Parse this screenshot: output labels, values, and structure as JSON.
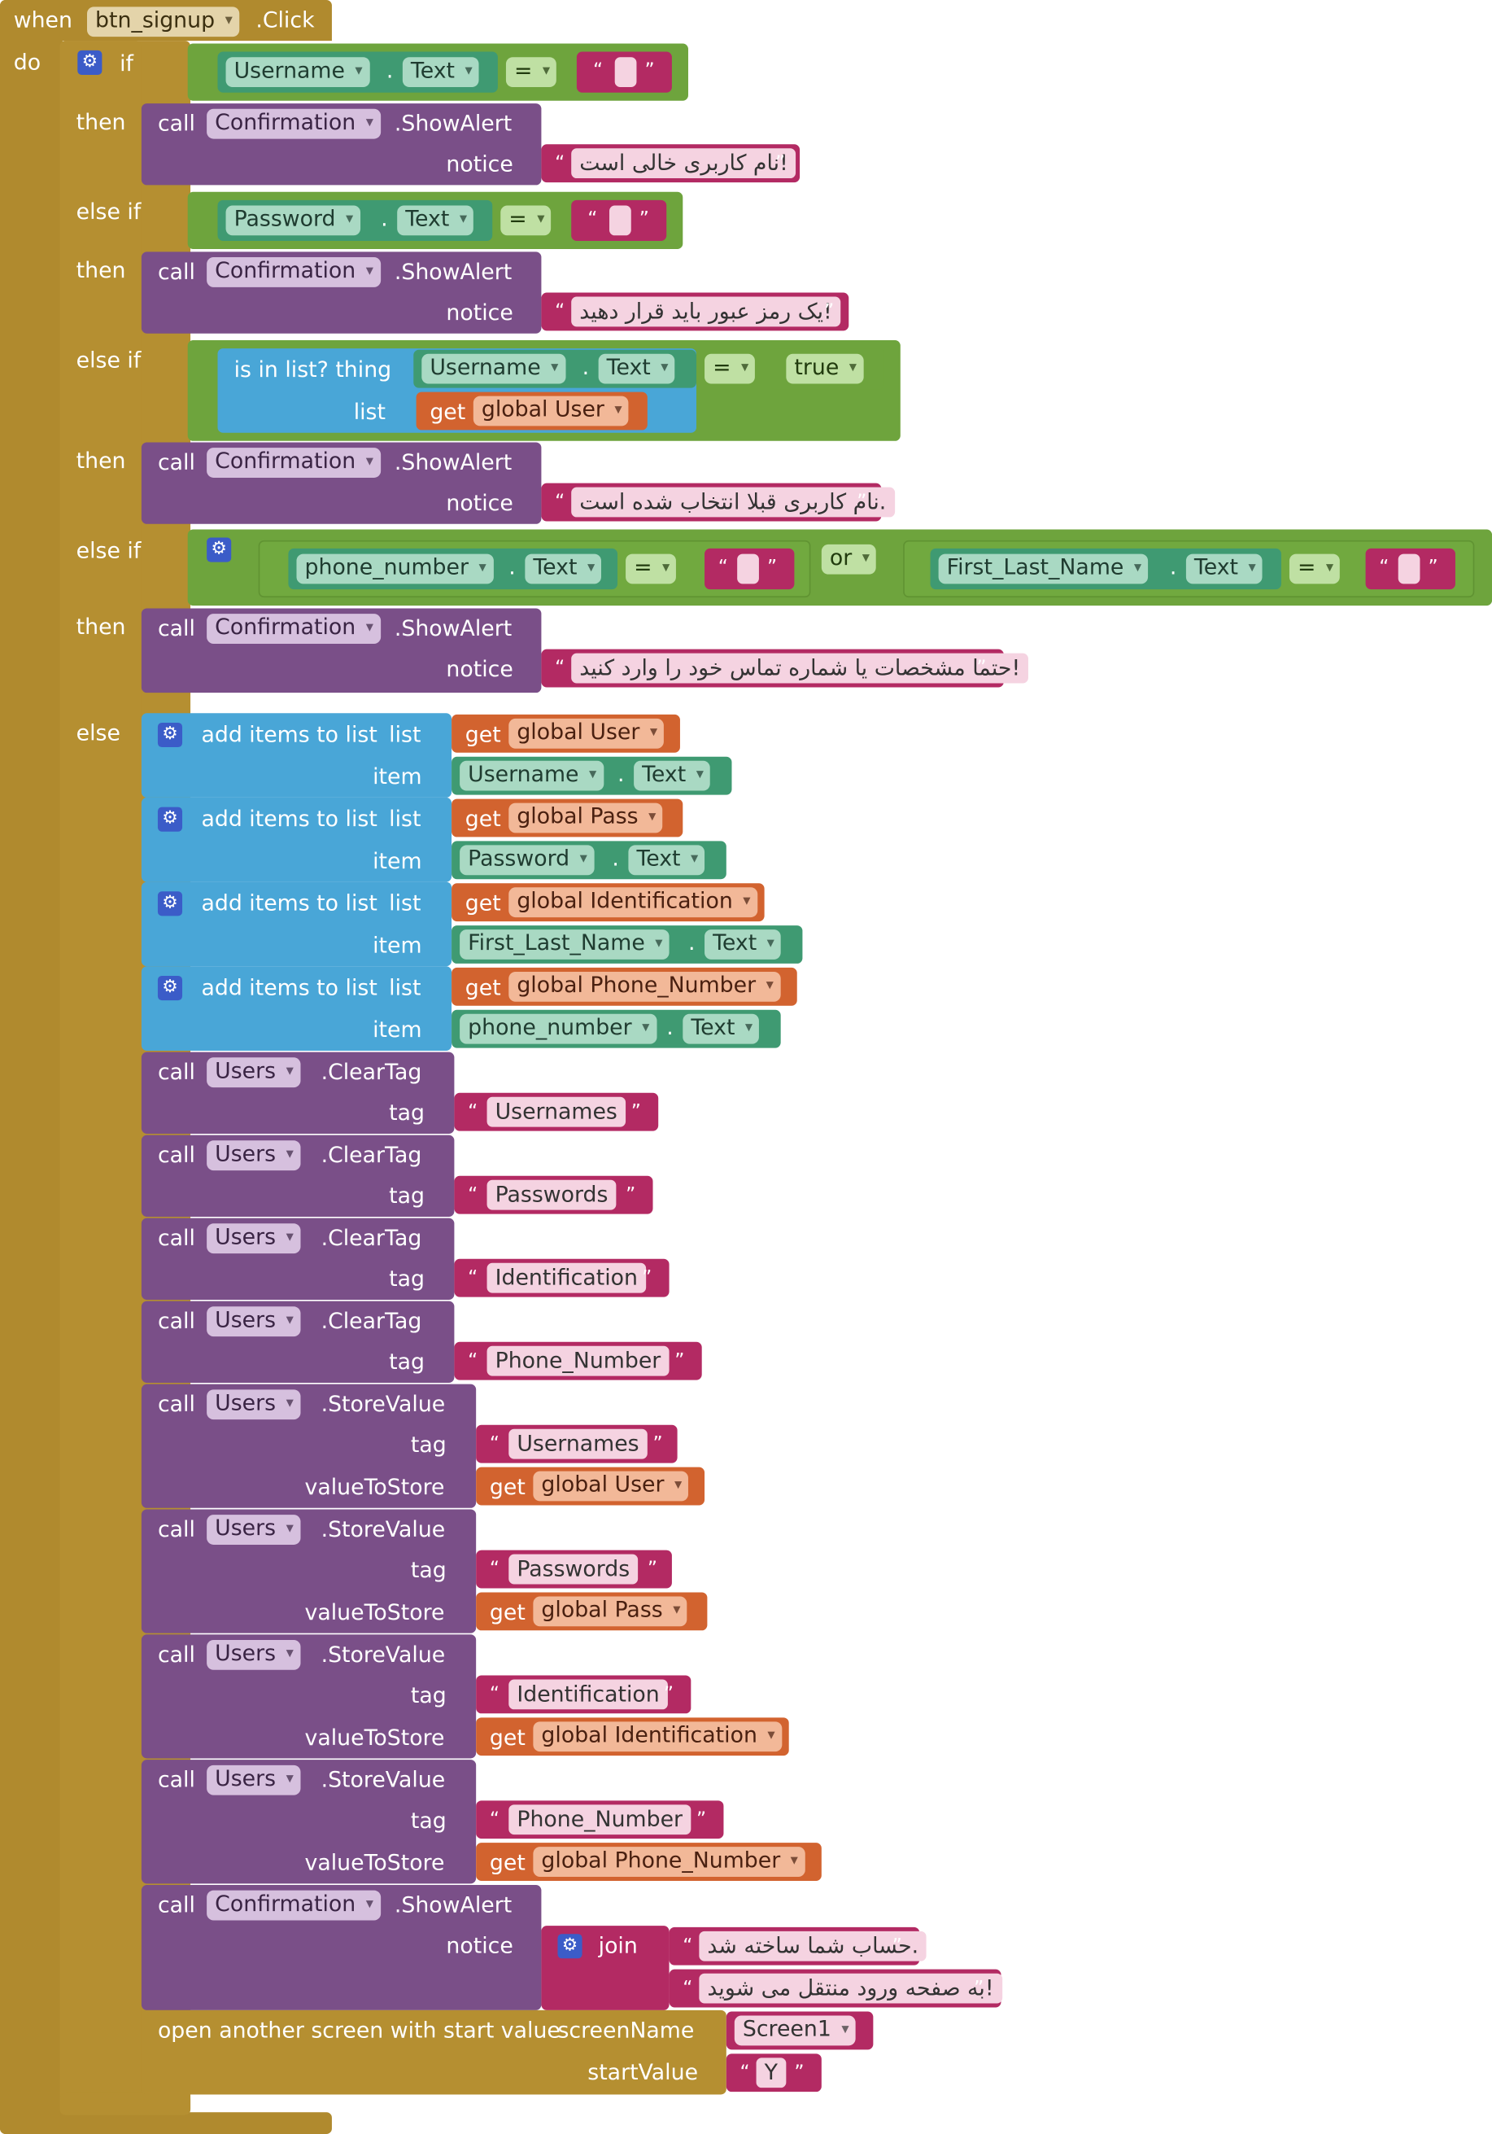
{
  "event": {
    "when": "when",
    "component": "btn_signup",
    "event_name": ".Click",
    "do": "do"
  },
  "kw": {
    "if": "if",
    "then": "then",
    "else_if": "else if",
    "else": "else",
    "call": "call",
    "notice": "notice",
    "tag": "tag",
    "value_to_store": "valueToStore",
    "get": "get",
    "list": "list",
    "item": "item",
    "add_items": "add items to list",
    "is_in_list": "is in list? thing",
    "or": "or",
    "eq": "=",
    "true": "true",
    "join": "join",
    "dot": ".",
    "quote_open": "“",
    "quote_close": "”",
    "open_screen": "open another screen with start value",
    "screen_name": "screenName",
    "start_value": "startValue"
  },
  "components": {
    "confirmation": "Confirmation",
    "users": "Users",
    "username": "Username",
    "password": "Password",
    "phone": "phone_number",
    "name": "First_Last_Name",
    "text_prop": "Text",
    "show_alert": ".ShowAlert",
    "clear_tag": ".ClearTag",
    "store_value": ".StoreValue"
  },
  "vars": {
    "user": "global User",
    "pass": "global Pass",
    "ident": "global Identification",
    "phone": "global Phone_Number"
  },
  "messages": {
    "m1": "!نام کاربری خالی است",
    "m2": "!یک رمز عبور باید قرار دهید",
    "m3": ".نام کاربری قبلا انتخاب شده است",
    "m4": "!حتما مشخصات یا شماره تماس خود را وارد کنید",
    "m5": ".حساب شما ساخته شد",
    "m6": "!به صفحه ورود منتقل می شوید"
  },
  "tags": {
    "usernames": "Usernames",
    "passwords": "Passwords",
    "identification": "Identification",
    "phone_number": "Phone_Number"
  },
  "screen": {
    "name": "Screen1",
    "start_value": "Y"
  },
  "colors": {
    "event": "#b08a2e",
    "control": "#b58f31",
    "component_method": "#7a4f88",
    "logic": "#6ea43d",
    "component_property": "#3f9a72",
    "text": "#b32a63",
    "variable": "#d2632f",
    "list": "#49a6d7",
    "gear": "#3b5cc8"
  }
}
